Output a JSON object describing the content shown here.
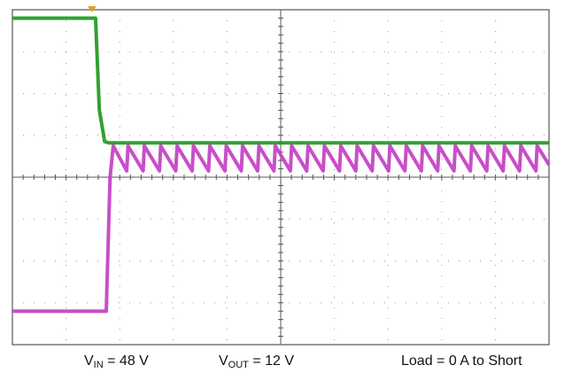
{
  "caption": {
    "vin": {
      "symbol": "V",
      "subscript": "IN",
      "value": "= 48 V"
    },
    "vout": {
      "symbol": "V",
      "subscript": "OUT",
      "value": "= 12 V"
    },
    "load": "Load = 0 A to Short"
  },
  "colors": {
    "vin_trace": "#1e9a1e",
    "vout_trace": "#c43fc4",
    "grid": "#9a9a9a",
    "frame": "#555555",
    "trigger_marker": "#e0a020"
  },
  "chart_data": {
    "type": "line",
    "title": "",
    "xlabel": "",
    "ylabel": "",
    "grid": true,
    "divisions": {
      "x": 10,
      "y": 8
    },
    "xlim": [
      0,
      10
    ],
    "ylim": [
      -4,
      4
    ],
    "series": [
      {
        "color": "#1e9a1e",
        "points": [
          [
            0,
            3.8
          ],
          [
            1.55,
            3.8
          ],
          [
            1.62,
            1.6
          ],
          [
            1.72,
            0.85
          ],
          [
            1.8,
            0.82
          ],
          [
            10,
            0.82
          ]
        ]
      },
      {
        "color": "#c43fc4",
        "points": [
          [
            0,
            -3.2
          ],
          [
            1.75,
            -3.2
          ],
          [
            1.82,
            0.0
          ],
          [
            1.88,
            0.75
          ]
        ],
        "ripple": {
          "start": 1.88,
          "end": 10,
          "period": 0.305,
          "high": 0.75,
          "low": 0.15
        }
      }
    ]
  }
}
